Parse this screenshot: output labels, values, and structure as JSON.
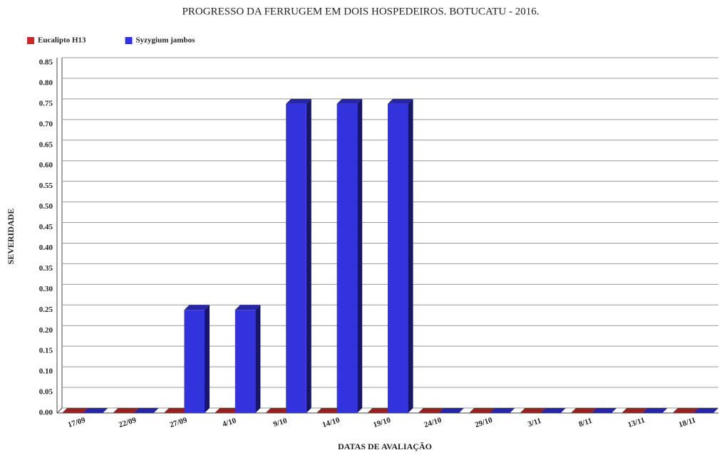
{
  "chart_data": {
    "type": "bar",
    "title": "PROGRESSO DA FERRUGEM EM DOIS HOSPEDEIROS. BOTUCATU - 2016.",
    "x_label": "DATAS DE AVALIAÇÃO",
    "y_label": "SEVERIDADE",
    "categories": [
      "17/09",
      "22/09",
      "27/09",
      "4/10",
      "9/10",
      "14/10",
      "19/10",
      "24/10",
      "29/10",
      "3/11",
      "8/11",
      "13/11",
      "18/11"
    ],
    "series": [
      {
        "name": "Eucalipto H13",
        "color": "#cc2a2a",
        "values": [
          0,
          0,
          0,
          0,
          0,
          0,
          0,
          0,
          0,
          0,
          0,
          0,
          0
        ]
      },
      {
        "name": "Syzygium jambos",
        "color": "#3333dd",
        "values": [
          0,
          0,
          0.25,
          0.25,
          0.75,
          0.75,
          0.75,
          0,
          0,
          0,
          0,
          0,
          0
        ]
      }
    ],
    "ylim": [
      0,
      0.85
    ],
    "yticks": [
      {
        "value": 0,
        "label": "0.00"
      },
      {
        "value": 0.05,
        "label": "0.05"
      },
      {
        "value": 0.1,
        "label": "0.10"
      },
      {
        "value": 0.15,
        "label": "0.15"
      },
      {
        "value": 0.2,
        "label": "0.20"
      },
      {
        "value": 0.25,
        "label": "0.25"
      },
      {
        "value": 0.3,
        "label": "0.30"
      },
      {
        "value": 0.35,
        "label": "0.35"
      },
      {
        "value": 0.4,
        "label": "0.40"
      },
      {
        "value": 0.45,
        "label": "0.45"
      },
      {
        "value": 0.5,
        "label": "0.50"
      },
      {
        "value": 0.55,
        "label": "0.55"
      },
      {
        "value": 0.6,
        "label": "0.60"
      },
      {
        "value": 0.65,
        "label": "0.65"
      },
      {
        "value": 0.7,
        "label": "0.70"
      },
      {
        "value": 0.75,
        "label": "0.75"
      },
      {
        "value": 0.8,
        "label": "0.80"
      },
      {
        "value": 0.85,
        "label": "0.85"
      }
    ],
    "grid": true,
    "legend": "top-left"
  }
}
